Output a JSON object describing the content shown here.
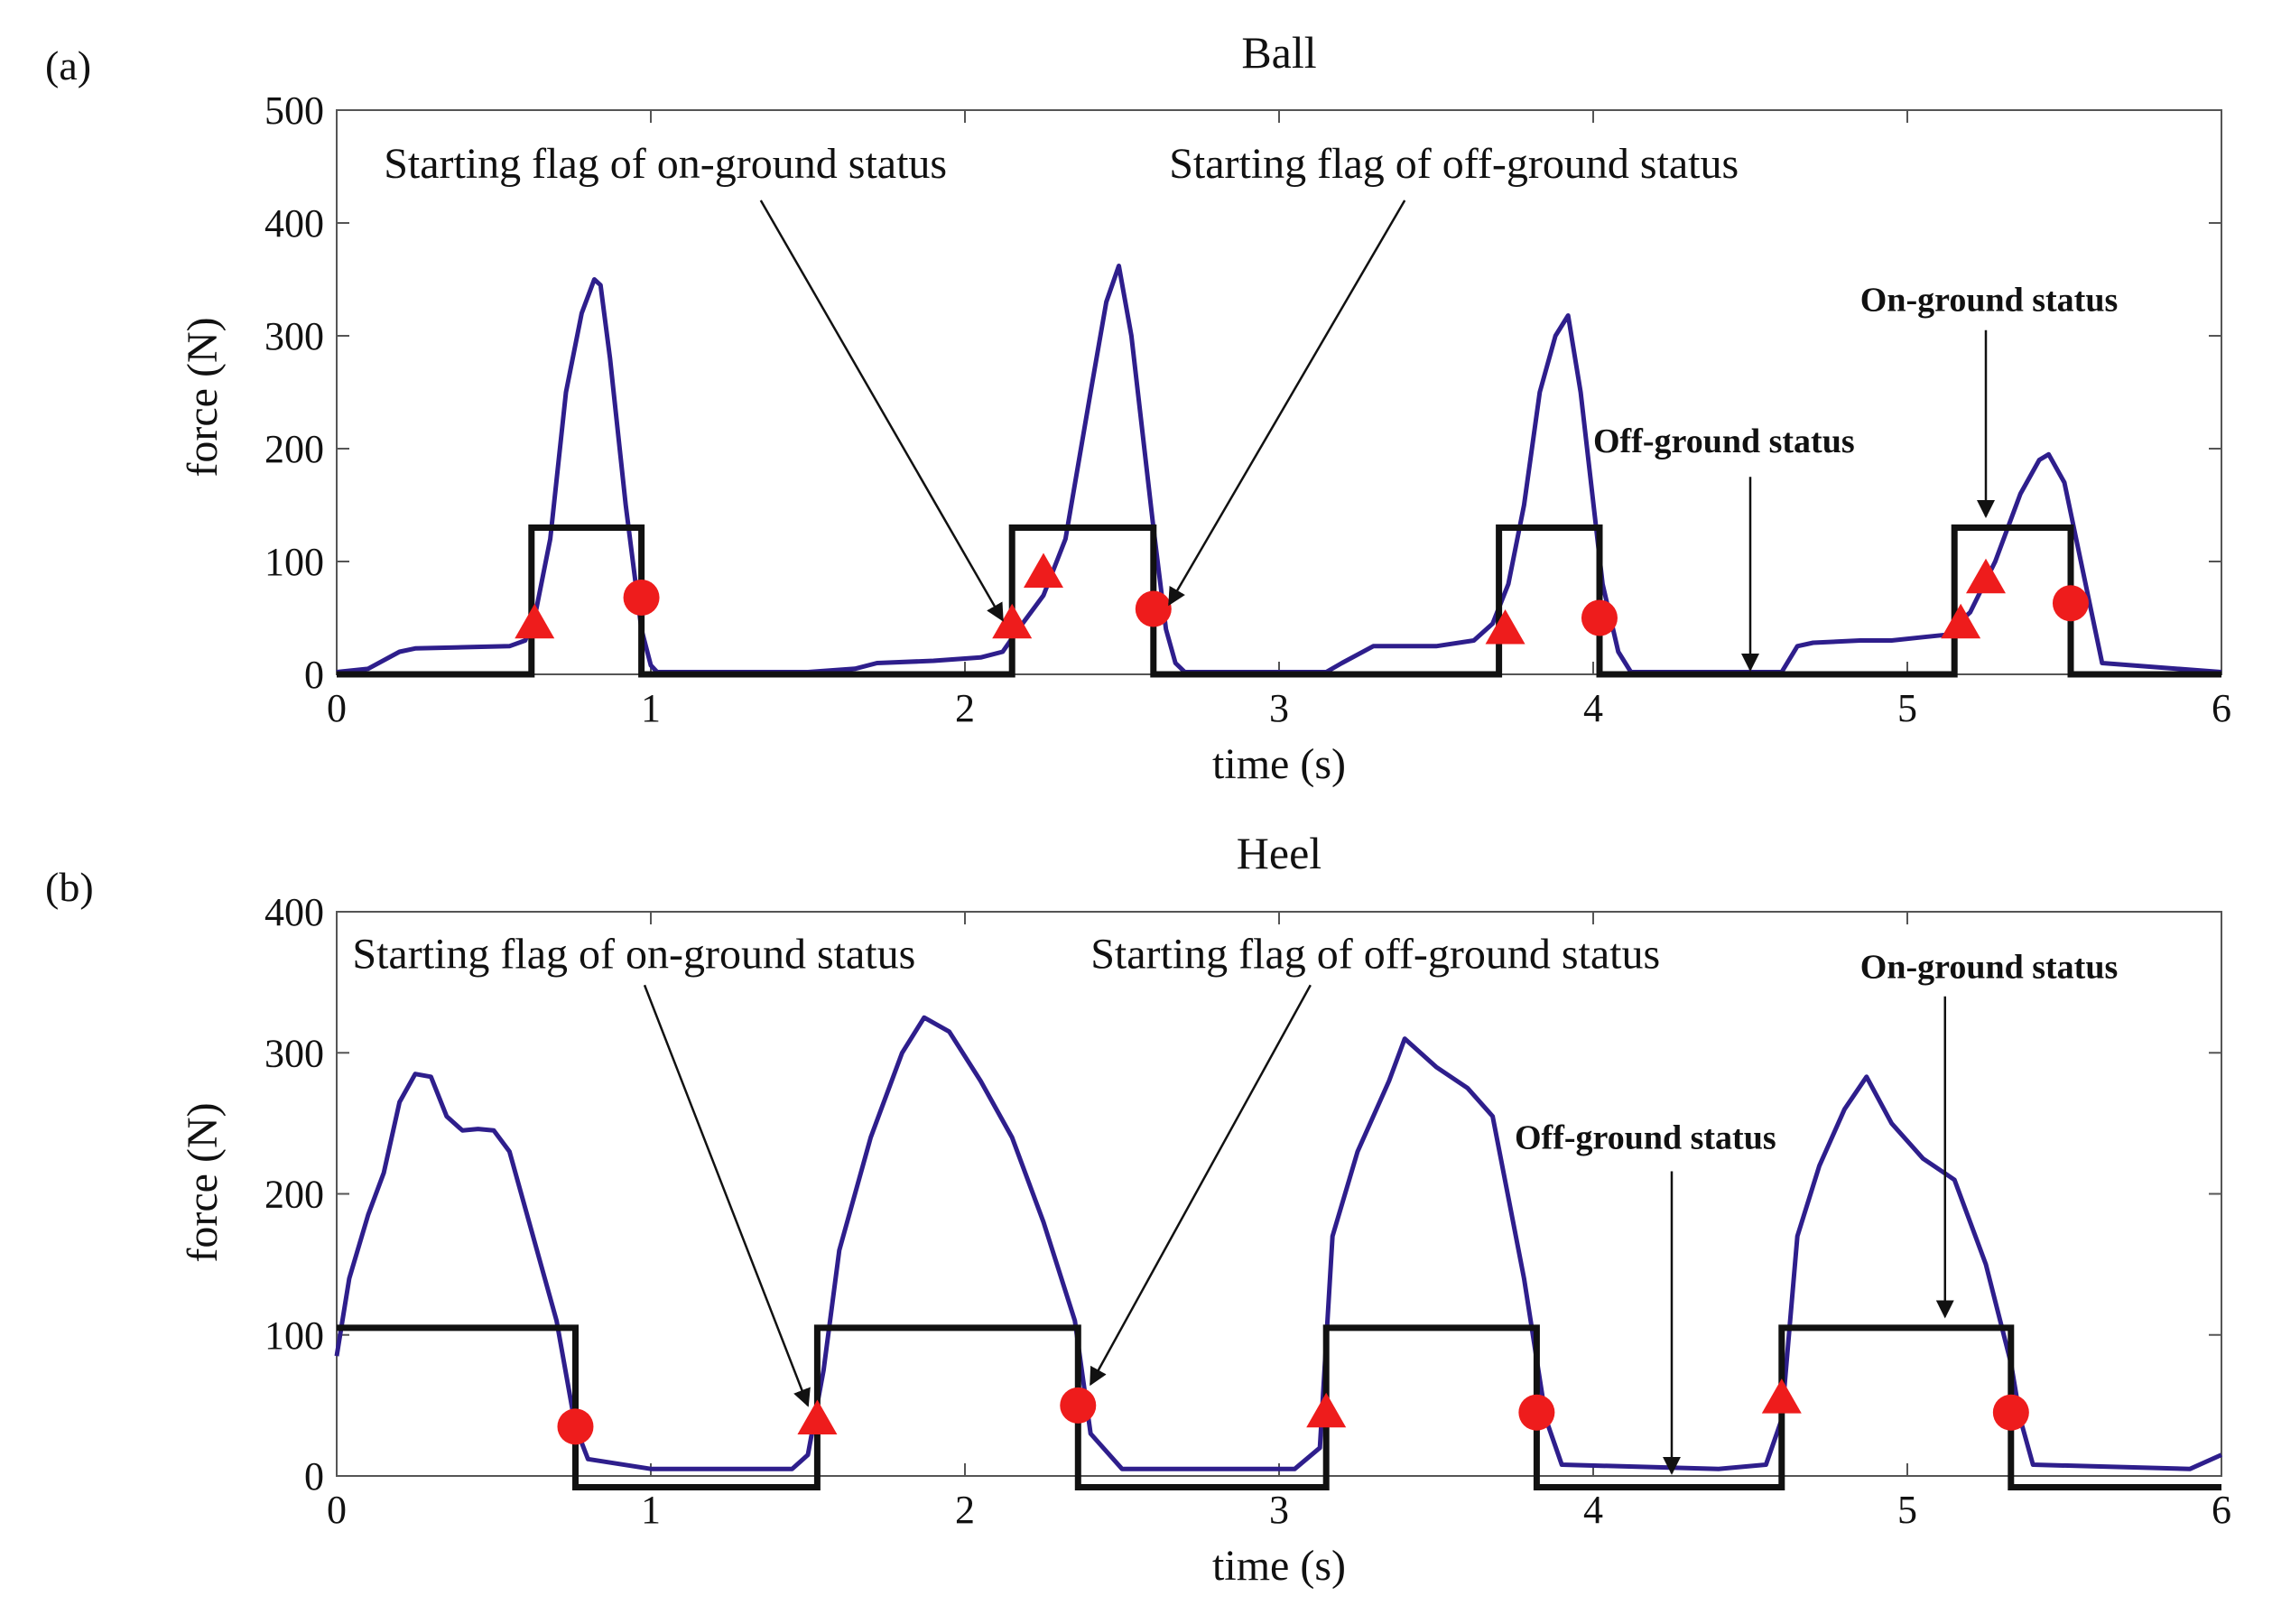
{
  "chart_data": [
    {
      "type": "line",
      "panel_label": "(a)",
      "title": "Ball",
      "xlabel": "time (s)",
      "ylabel": "force (N)",
      "xlim": [
        0,
        6
      ],
      "ylim": [
        0,
        500
      ],
      "xticks": [
        0,
        1,
        2,
        3,
        4,
        5,
        6
      ],
      "yticks": [
        0,
        100,
        200,
        300,
        400,
        500
      ],
      "series": [
        {
          "name": "force",
          "color": "#2e1e8c",
          "x": [
            0,
            0.1,
            0.2,
            0.25,
            0.4,
            0.55,
            0.6,
            0.63,
            0.68,
            0.73,
            0.78,
            0.82,
            0.84,
            0.87,
            0.92,
            0.97,
            1.0,
            1.02,
            1.2,
            1.5,
            1.65,
            1.72,
            1.9,
            2.05,
            2.12,
            2.17,
            2.25,
            2.32,
            2.4,
            2.45,
            2.49,
            2.53,
            2.6,
            2.64,
            2.67,
            2.7,
            3.0,
            3.15,
            3.2,
            3.3,
            3.5,
            3.62,
            3.68,
            3.73,
            3.78,
            3.83,
            3.88,
            3.92,
            3.96,
            4.03,
            4.08,
            4.12,
            4.3,
            4.6,
            4.65,
            4.7,
            4.85,
            4.95,
            5.05,
            5.12,
            5.2,
            5.28,
            5.36,
            5.42,
            5.45,
            5.5,
            5.56,
            5.62,
            6.0
          ],
          "y": [
            2,
            5,
            20,
            23,
            24,
            25,
            30,
            50,
            120,
            250,
            320,
            350,
            345,
            280,
            150,
            40,
            8,
            2,
            2,
            2,
            5,
            10,
            12,
            15,
            20,
            40,
            70,
            120,
            250,
            330,
            362,
            300,
            130,
            40,
            10,
            2,
            2,
            2,
            10,
            25,
            25,
            30,
            45,
            80,
            150,
            250,
            300,
            318,
            250,
            80,
            20,
            2,
            2,
            2,
            25,
            28,
            30,
            30,
            33,
            35,
            55,
            100,
            160,
            190,
            195,
            170,
            90,
            10,
            2
          ]
        },
        {
          "name": "status",
          "color": "#111111",
          "x": [
            0,
            0.62,
            0.62,
            0.97,
            0.97,
            2.15,
            2.15,
            2.6,
            2.6,
            3.7,
            3.7,
            4.02,
            4.02,
            5.15,
            5.15,
            5.52,
            5.52,
            6.0
          ],
          "y": [
            0,
            0,
            130,
            130,
            0,
            0,
            130,
            130,
            0,
            0,
            130,
            130,
            0,
            0,
            130,
            130,
            0,
            0
          ]
        }
      ],
      "triangle_markers": [
        [
          0.63,
          45
        ],
        [
          2.15,
          45
        ],
        [
          2.25,
          90
        ],
        [
          3.72,
          40
        ],
        [
          5.17,
          45
        ],
        [
          5.25,
          85
        ]
      ],
      "circle_markers": [
        [
          0.97,
          68
        ],
        [
          2.6,
          58
        ],
        [
          4.02,
          50
        ],
        [
          5.52,
          63
        ]
      ],
      "annotations": [
        {
          "text": "Starting flag of on-ground status",
          "style": "normal",
          "text_xy": [
            0.15,
            440
          ],
          "arrow_from": [
            1.35,
            420
          ],
          "arrow_to": [
            2.12,
            48
          ]
        },
        {
          "text": "Starting flag of off-ground status",
          "style": "normal",
          "text_xy": [
            2.65,
            440
          ],
          "arrow_from": [
            3.4,
            420
          ],
          "arrow_to": [
            2.65,
            62
          ]
        },
        {
          "text": "On-ground status",
          "style": "bold",
          "text_xy": [
            4.85,
            322
          ],
          "arrow_from": [
            5.25,
            305
          ],
          "arrow_to": [
            5.25,
            140
          ]
        },
        {
          "text": "Off-ground status",
          "style": "bold",
          "text_xy": [
            4.0,
            197
          ],
          "arrow_from": [
            4.5,
            175
          ],
          "arrow_to": [
            4.5,
            4
          ]
        }
      ]
    },
    {
      "type": "line",
      "panel_label": "(b)",
      "title": "Heel",
      "xlabel": "time (s)",
      "ylabel": "force (N)",
      "xlim": [
        0,
        6
      ],
      "ylim": [
        0,
        400
      ],
      "xticks": [
        0,
        1,
        2,
        3,
        4,
        5,
        6
      ],
      "yticks": [
        0,
        100,
        200,
        300,
        400
      ],
      "series": [
        {
          "name": "force",
          "color": "#2e1e8c",
          "x": [
            0,
            0.04,
            0.1,
            0.15,
            0.2,
            0.25,
            0.3,
            0.35,
            0.4,
            0.45,
            0.5,
            0.55,
            0.6,
            0.7,
            0.76,
            0.8,
            1.0,
            1.45,
            1.5,
            1.55,
            1.6,
            1.7,
            1.8,
            1.87,
            1.95,
            2.05,
            2.15,
            2.25,
            2.35,
            2.4,
            2.5,
            3.05,
            3.13,
            3.17,
            3.25,
            3.35,
            3.4,
            3.5,
            3.6,
            3.68,
            3.78,
            3.85,
            3.9,
            4.4,
            4.55,
            4.6,
            4.65,
            4.72,
            4.8,
            4.87,
            4.95,
            5.05,
            5.15,
            5.25,
            5.33,
            5.36,
            5.4,
            5.9,
            6.0
          ],
          "y": [
            85,
            140,
            185,
            215,
            265,
            285,
            283,
            255,
            245,
            246,
            245,
            230,
            190,
            110,
            35,
            12,
            5,
            5,
            15,
            75,
            160,
            240,
            300,
            325,
            315,
            280,
            240,
            180,
            110,
            30,
            5,
            5,
            20,
            170,
            230,
            280,
            310,
            290,
            275,
            255,
            140,
            40,
            8,
            5,
            8,
            40,
            170,
            220,
            260,
            283,
            250,
            225,
            210,
            150,
            80,
            40,
            8,
            5,
            15
          ]
        },
        {
          "name": "status",
          "color": "#111111",
          "x": [
            0,
            0.76,
            0.76,
            1.53,
            1.53,
            2.36,
            2.36,
            3.15,
            3.15,
            3.82,
            3.82,
            4.6,
            4.6,
            5.33,
            5.33,
            6.0
          ],
          "y": [
            105,
            105,
            -8,
            -8,
            105,
            105,
            -8,
            -8,
            105,
            105,
            -8,
            -8,
            105,
            105,
            -8,
            -8
          ]
        }
      ],
      "triangle_markers": [
        [
          1.53,
          40
        ],
        [
          3.15,
          45
        ],
        [
          4.6,
          55
        ]
      ],
      "circle_markers": [
        [
          0.76,
          35
        ],
        [
          2.36,
          50
        ],
        [
          3.82,
          45
        ],
        [
          5.33,
          45
        ]
      ],
      "annotations": [
        {
          "text": "Starting flag of on-ground status",
          "style": "normal",
          "text_xy": [
            0.05,
            360
          ],
          "arrow_from": [
            0.98,
            348
          ],
          "arrow_to": [
            1.5,
            50
          ]
        },
        {
          "text": "Starting flag of off-ground status",
          "style": "normal",
          "text_xy": [
            2.4,
            360
          ],
          "arrow_from": [
            3.1,
            348
          ],
          "arrow_to": [
            2.4,
            65
          ]
        },
        {
          "text": "On-ground status",
          "style": "bold",
          "text_xy": [
            4.85,
            353
          ],
          "arrow_from": [
            5.12,
            340
          ],
          "arrow_to": [
            5.12,
            113
          ]
        },
        {
          "text": "Off-ground status",
          "style": "bold",
          "text_xy": [
            3.75,
            232
          ],
          "arrow_from": [
            4.25,
            216
          ],
          "arrow_to": [
            4.25,
            2
          ]
        }
      ]
    }
  ]
}
